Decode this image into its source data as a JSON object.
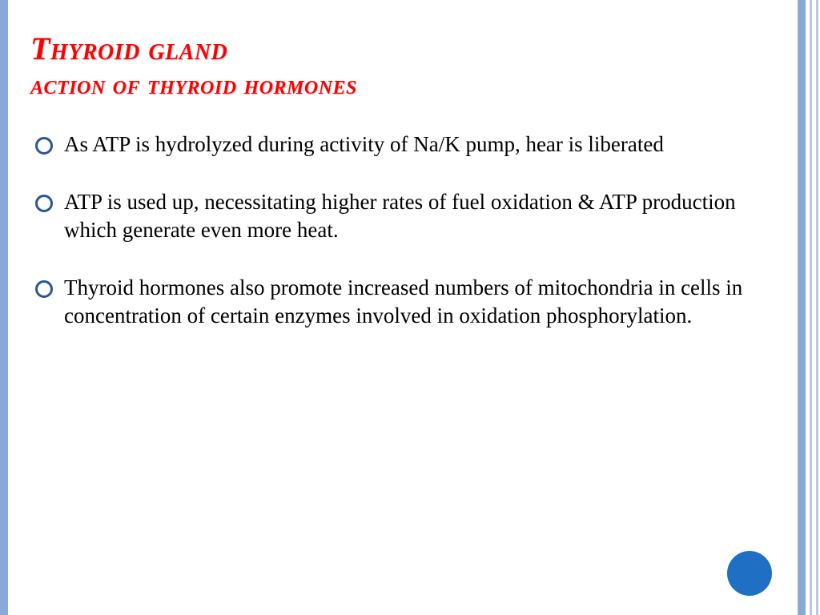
{
  "slide": {
    "title_line1": "Thyroid gland",
    "title_line2": "action of thyroid hormones",
    "bullets": [
      "As  ATP is hydrolyzed during activity of Na/K pump, hear is liberated",
      "ATP is used up, necessitating higher rates of fuel oxidation & ATP production which generate even more heat.",
      "Thyroid hormones also promote increased numbers of mitochondria in cells in concentration of certain enzymes involved in oxidation phosphorylation."
    ]
  },
  "style": {
    "background_color": "#ffffff",
    "border_color_main": "#8aa9d6",
    "border_color_light": "#b8c9e4",
    "title_color": "#ff0000",
    "title_shadow": "#d0d0d0",
    "title_fontsize_first": 40,
    "title_fontsize": 34,
    "title_font_family": "Georgia",
    "title_font_style": "italic bold small-caps",
    "body_color": "#000000",
    "body_fontsize": 27,
    "body_font_family": "Century Schoolbook",
    "bullet_ring_color": "#2a5699",
    "bullet_ring_outer": 22,
    "bullet_ring_border": 3,
    "decor_circle_color": "#1f6fc4",
    "decor_circle_diameter": 56,
    "slide_width": 1024,
    "slide_height": 768
  }
}
